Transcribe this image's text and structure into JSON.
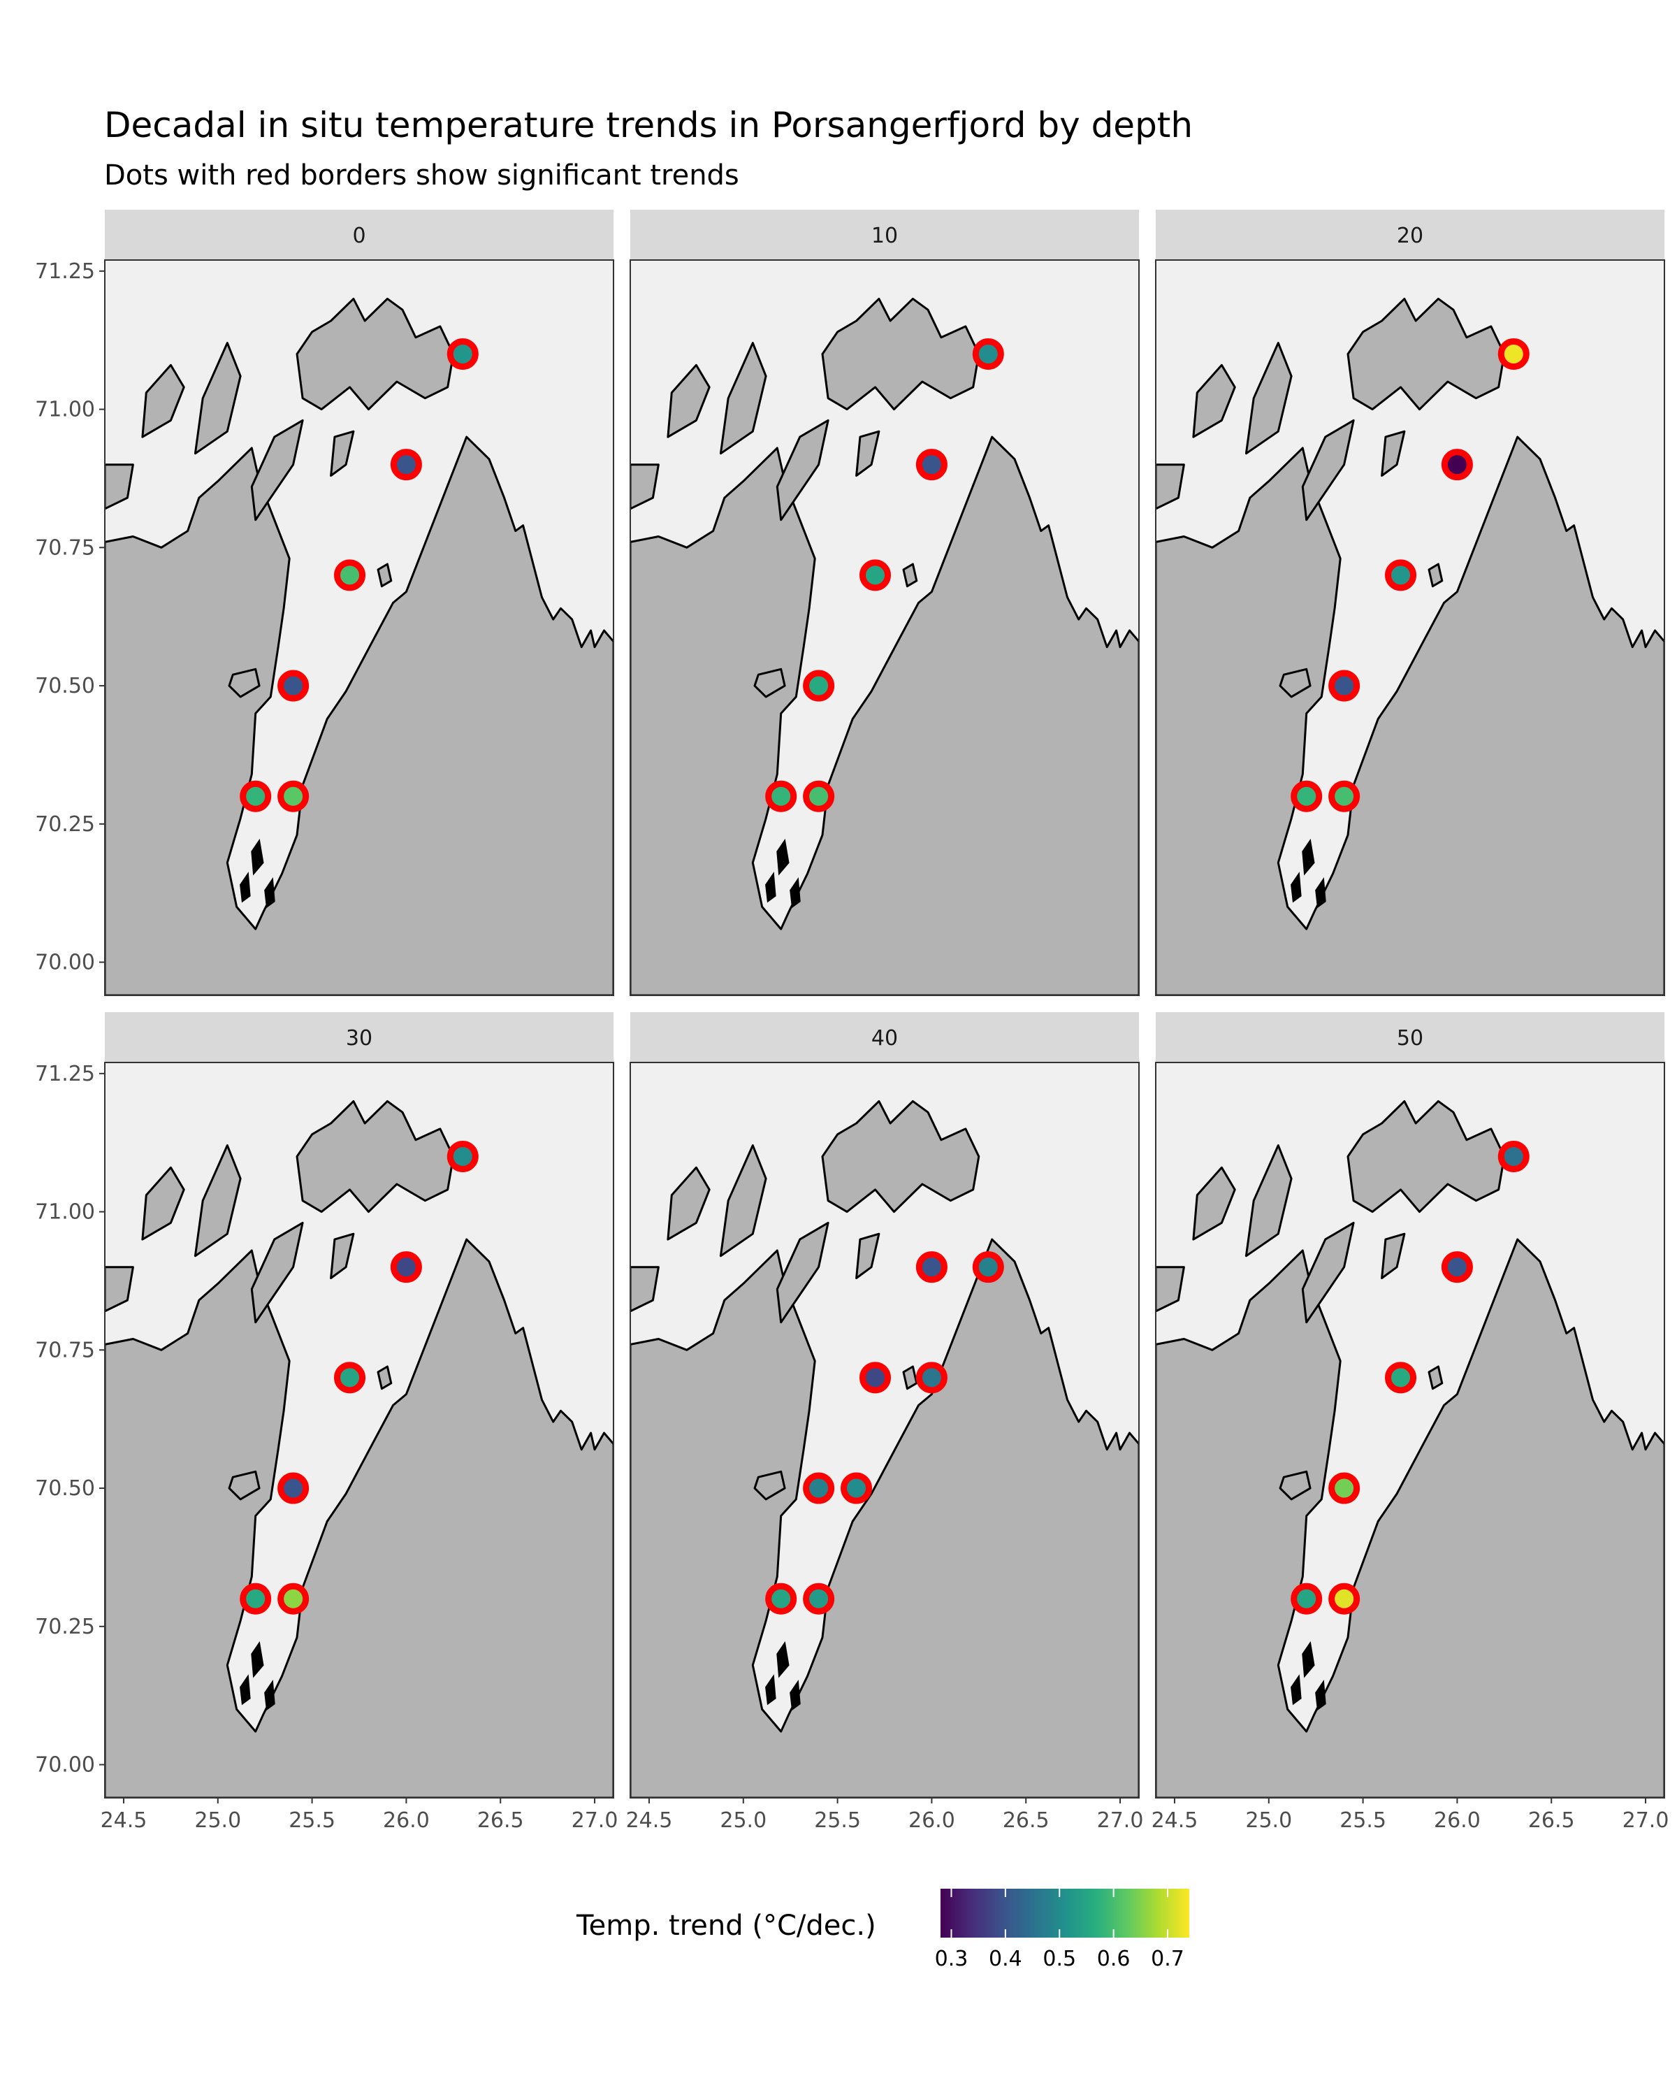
{
  "chart_data": {
    "type": "scatter",
    "title": "Decadal in situ temperature trends in Porsangerfjord by depth",
    "subtitle": "Dots with red borders show significant trends",
    "xlim": [
      24.4,
      27.1
    ],
    "ylim": [
      69.94,
      71.27
    ],
    "x_ticks": [
      24.5,
      25.0,
      25.5,
      26.0,
      26.5,
      27.0
    ],
    "x_tick_labels": [
      "24.5",
      "25.0",
      "25.5",
      "26.0",
      "26.5",
      "27.0"
    ],
    "y_ticks": [
      70.0,
      70.25,
      70.5,
      70.75,
      71.0,
      71.25
    ],
    "y_tick_labels": [
      "70.00",
      "70.25",
      "70.50",
      "70.75",
      "71.00",
      "71.25"
    ],
    "grid": true,
    "significant_border_color": "#ff0000",
    "colors": {
      "panel_bg": "#ebebeb",
      "fjord_water": "#f0f0f0",
      "land": "#b3b3b3",
      "land_outline": "#000000",
      "strip_bg": "#d9d9d9",
      "grid": "#ffffff"
    },
    "legend": {
      "title": "Temp. trend (°C/dec.)",
      "position": "bottom",
      "min": 0.28,
      "max": 0.74,
      "ticks": [
        0.3,
        0.4,
        0.5,
        0.6,
        0.7
      ],
      "tick_labels": [
        "0.3",
        "0.4",
        "0.5",
        "0.6",
        "0.7"
      ]
    },
    "panels": [
      {
        "label": "0",
        "points": [
          {
            "lon": 26.3,
            "lat": 71.1,
            "trend": 0.52,
            "significant": true
          },
          {
            "lon": 26.0,
            "lat": 70.9,
            "trend": 0.4,
            "significant": true
          },
          {
            "lon": 25.7,
            "lat": 70.7,
            "trend": 0.6,
            "significant": true
          },
          {
            "lon": 25.4,
            "lat": 70.5,
            "trend": 0.4,
            "significant": true
          },
          {
            "lon": 25.2,
            "lat": 70.3,
            "trend": 0.58,
            "significant": true
          },
          {
            "lon": 25.4,
            "lat": 70.3,
            "trend": 0.62,
            "significant": true
          }
        ]
      },
      {
        "label": "10",
        "points": [
          {
            "lon": 26.3,
            "lat": 71.1,
            "trend": 0.5,
            "significant": true
          },
          {
            "lon": 26.0,
            "lat": 70.9,
            "trend": 0.4,
            "significant": true
          },
          {
            "lon": 25.7,
            "lat": 70.7,
            "trend": 0.55,
            "significant": true
          },
          {
            "lon": 25.4,
            "lat": 70.5,
            "trend": 0.56,
            "significant": true
          },
          {
            "lon": 25.2,
            "lat": 70.3,
            "trend": 0.58,
            "significant": true
          },
          {
            "lon": 25.4,
            "lat": 70.3,
            "trend": 0.6,
            "significant": true
          }
        ]
      },
      {
        "label": "20",
        "points": [
          {
            "lon": 26.3,
            "lat": 71.1,
            "trend": 0.73,
            "significant": true
          },
          {
            "lon": 26.0,
            "lat": 70.9,
            "trend": 0.28,
            "significant": true
          },
          {
            "lon": 25.7,
            "lat": 70.7,
            "trend": 0.52,
            "significant": true
          },
          {
            "lon": 25.4,
            "lat": 70.5,
            "trend": 0.4,
            "significant": true
          },
          {
            "lon": 25.2,
            "lat": 70.3,
            "trend": 0.58,
            "significant": true
          },
          {
            "lon": 25.4,
            "lat": 70.3,
            "trend": 0.6,
            "significant": true
          }
        ]
      },
      {
        "label": "30",
        "points": [
          {
            "lon": 26.3,
            "lat": 71.1,
            "trend": 0.5,
            "significant": true
          },
          {
            "lon": 26.0,
            "lat": 70.9,
            "trend": 0.38,
            "significant": true
          },
          {
            "lon": 25.7,
            "lat": 70.7,
            "trend": 0.55,
            "significant": true
          },
          {
            "lon": 25.4,
            "lat": 70.5,
            "trend": 0.4,
            "significant": true
          },
          {
            "lon": 25.2,
            "lat": 70.3,
            "trend": 0.56,
            "significant": true
          },
          {
            "lon": 25.4,
            "lat": 70.3,
            "trend": 0.66,
            "significant": true
          }
        ]
      },
      {
        "label": "40",
        "points": [
          {
            "lon": 26.0,
            "lat": 70.9,
            "trend": 0.4,
            "significant": true
          },
          {
            "lon": 26.3,
            "lat": 70.9,
            "trend": 0.48,
            "significant": true
          },
          {
            "lon": 25.7,
            "lat": 70.7,
            "trend": 0.38,
            "significant": true
          },
          {
            "lon": 26.0,
            "lat": 70.7,
            "trend": 0.46,
            "significant": true
          },
          {
            "lon": 25.4,
            "lat": 70.5,
            "trend": 0.48,
            "significant": true
          },
          {
            "lon": 25.6,
            "lat": 70.5,
            "trend": 0.5,
            "significant": true
          },
          {
            "lon": 25.2,
            "lat": 70.3,
            "trend": 0.55,
            "significant": true
          },
          {
            "lon": 25.4,
            "lat": 70.3,
            "trend": 0.53,
            "significant": true
          }
        ]
      },
      {
        "label": "50",
        "points": [
          {
            "lon": 26.3,
            "lat": 71.1,
            "trend": 0.45,
            "significant": true
          },
          {
            "lon": 26.0,
            "lat": 70.9,
            "trend": 0.4,
            "significant": true
          },
          {
            "lon": 25.7,
            "lat": 70.7,
            "trend": 0.56,
            "significant": true
          },
          {
            "lon": 25.4,
            "lat": 70.5,
            "trend": 0.64,
            "significant": true
          },
          {
            "lon": 25.2,
            "lat": 70.3,
            "trend": 0.55,
            "significant": true
          },
          {
            "lon": 25.4,
            "lat": 70.3,
            "trend": 0.72,
            "significant": true
          }
        ]
      }
    ]
  }
}
